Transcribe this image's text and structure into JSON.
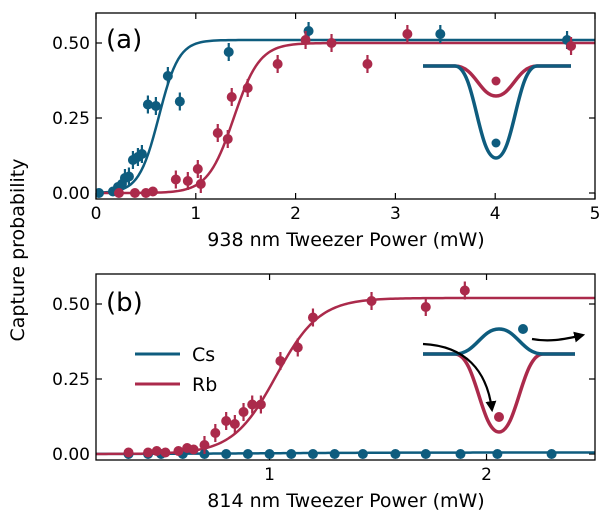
{
  "colors": {
    "cs": "#0e5c7e",
    "rb": "#ab2a4b"
  },
  "shared_ylabel": "Capture probability",
  "legend": {
    "cs_label": "Cs",
    "rb_label": "Rb"
  },
  "chart_data": [
    {
      "type": "scatter",
      "panel_label": "(a)",
      "xlabel": "938 nm Tweezer Power (mW)",
      "ylabel": "Capture probability",
      "xlim": [
        0,
        5
      ],
      "ylim": [
        -0.02,
        0.6
      ],
      "xticks": [
        0,
        1,
        2,
        3,
        4,
        5
      ],
      "yticks": [
        0.0,
        0.25,
        0.5
      ],
      "ytick_labels": [
        "0.00",
        "0.25",
        "0.50"
      ],
      "series": [
        {
          "name": "Cs",
          "x": [
            0.03,
            0.17,
            0.22,
            0.26,
            0.29,
            0.33,
            0.37,
            0.42,
            0.46,
            0.52,
            0.6,
            0.72,
            0.84,
            1.33,
            2.13,
            3.45,
            4.72
          ],
          "y": [
            0.0,
            0.005,
            0.02,
            0.03,
            0.05,
            0.055,
            0.11,
            0.12,
            0.13,
            0.295,
            0.29,
            0.39,
            0.305,
            0.47,
            0.54,
            0.53,
            0.51
          ],
          "fit": {
            "A": 0.51,
            "x0": 0.63,
            "w": 0.1
          }
        },
        {
          "name": "Rb",
          "x": [
            0.23,
            0.39,
            0.5,
            0.57,
            0.8,
            0.92,
            1.02,
            1.05,
            1.22,
            1.32,
            1.36,
            1.52,
            1.82,
            2.1,
            2.36,
            2.72,
            3.12,
            4.76
          ],
          "y": [
            0.0,
            0.0,
            0.0,
            0.005,
            0.045,
            0.04,
            0.08,
            0.03,
            0.2,
            0.18,
            0.32,
            0.35,
            0.43,
            0.51,
            0.5,
            0.43,
            0.53,
            0.49
          ],
          "fit": {
            "A": 0.5,
            "x0": 1.38,
            "w": 0.13
          }
        }
      ]
    },
    {
      "type": "scatter",
      "panel_label": "(b)",
      "xlabel": "814 nm Tweezer Power (mW)",
      "ylabel": "Capture probability",
      "xlim": [
        0.2,
        2.5
      ],
      "ylim": [
        -0.02,
        0.6
      ],
      "xticks": [
        1,
        2
      ],
      "yticks": [
        0.0,
        0.25,
        0.5
      ],
      "ytick_labels": [
        "0.00",
        "0.25",
        "0.50"
      ],
      "series": [
        {
          "name": "Cs",
          "x": [
            0.35,
            0.44,
            0.5,
            0.6,
            0.7,
            0.8,
            0.9,
            1.0,
            1.1,
            1.2,
            1.3,
            1.43,
            1.58,
            1.72,
            1.88,
            2.05,
            2.3
          ],
          "y": [
            0.0,
            0.0,
            0.0,
            0.0,
            0.0,
            0.0,
            0.0,
            0.0,
            0.0,
            0.0,
            0.0,
            0.0,
            0.0,
            0.0,
            0.0,
            0.0,
            0.0
          ],
          "fit": {
            "A": 0.005,
            "x0": 1.0,
            "w": 0.3
          }
        },
        {
          "name": "Rb",
          "x": [
            0.35,
            0.44,
            0.48,
            0.52,
            0.58,
            0.62,
            0.65,
            0.7,
            0.75,
            0.8,
            0.84,
            0.88,
            0.92,
            0.96,
            1.05,
            1.13,
            1.2,
            1.47,
            1.72,
            1.9
          ],
          "y": [
            0.005,
            0.005,
            0.01,
            0.005,
            0.01,
            0.02,
            0.015,
            0.03,
            0.07,
            0.11,
            0.1,
            0.14,
            0.165,
            0.165,
            0.31,
            0.355,
            0.455,
            0.51,
            0.49,
            0.545
          ],
          "fit": {
            "A": 0.52,
            "x0": 1.03,
            "w": 0.1
          }
        }
      ]
    }
  ]
}
